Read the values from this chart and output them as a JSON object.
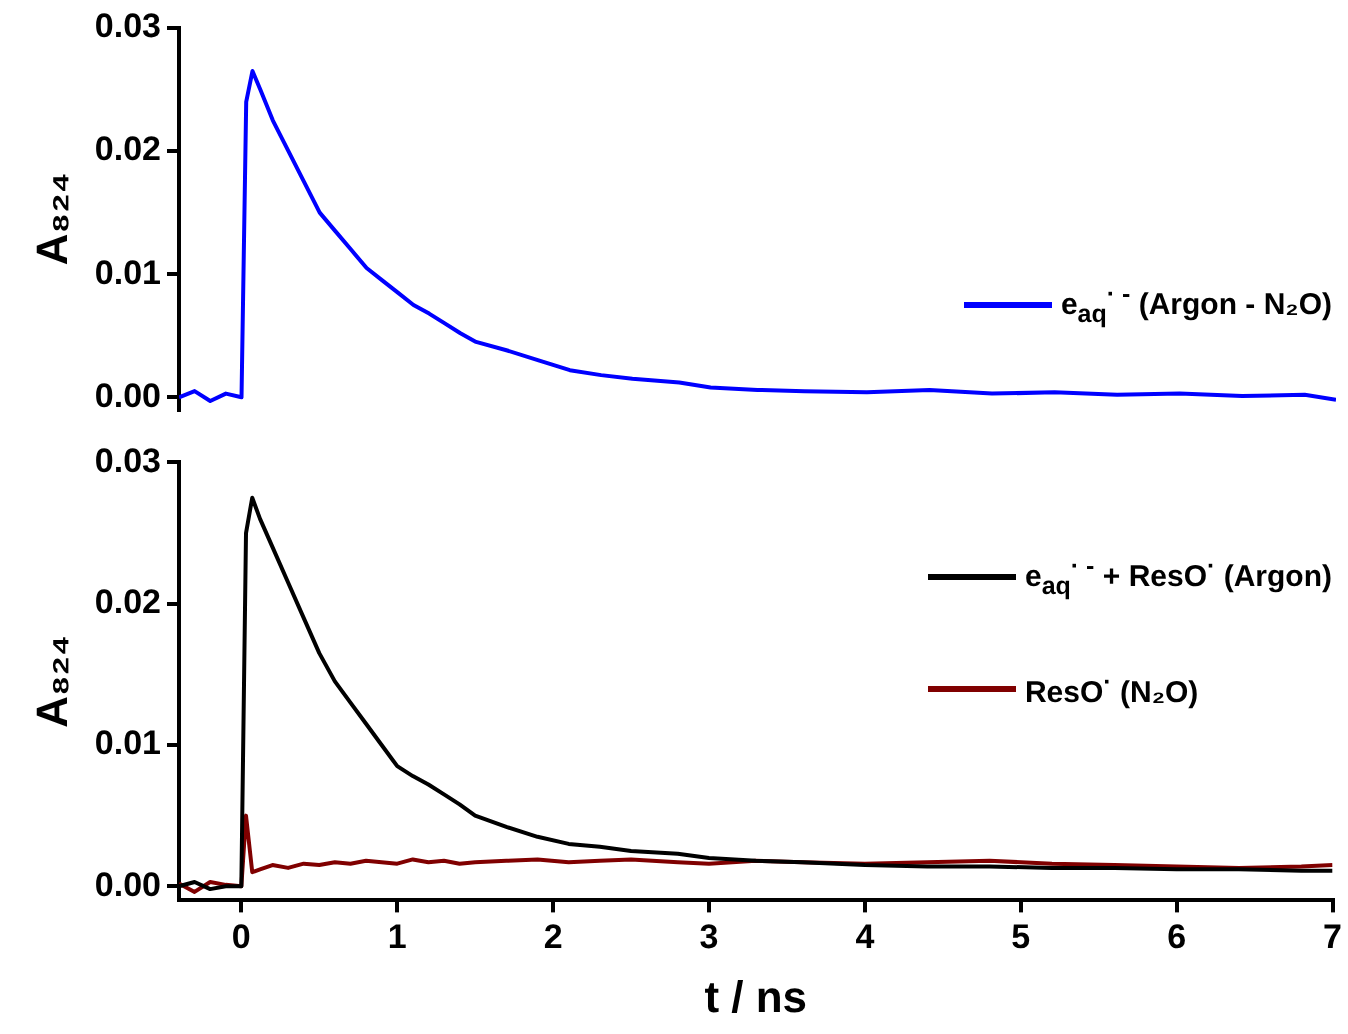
{
  "chart_data": [
    {
      "type": "line",
      "ylabel": "A₈₂₄",
      "xlim": [
        -0.4,
        7
      ],
      "ylim": [
        -0.001,
        0.03
      ],
      "tick_labels": "y",
      "legend": "right",
      "yticks": [
        {
          "value": 0,
          "label": "0.00"
        },
        {
          "value": 0.01,
          "label": "0.01"
        },
        {
          "value": 0.02,
          "label": "0.02"
        },
        {
          "value": 0.03,
          "label": "0.03"
        }
      ],
      "x": [
        -0.4,
        -0.3,
        -0.2,
        -0.1,
        0,
        0.03,
        0.07,
        0.12,
        0.2,
        0.3,
        0.4,
        0.5,
        0.6,
        0.7,
        0.8,
        0.9,
        1.0,
        1.1,
        1.2,
        1.3,
        1.4,
        1.5,
        1.7,
        1.9,
        2.1,
        2.3,
        2.5,
        2.8,
        3.0,
        3.3,
        3.6,
        4.0,
        4.4,
        4.8,
        5.2,
        5.6,
        6.0,
        6.4,
        6.8,
        7.0
      ],
      "series": [
        {
          "name": "e$_{aq}$$^{· -}$  (Argon - N₂O)",
          "color": "#0000ff",
          "values": [
            0,
            0.0005,
            -0.0003,
            0.0003,
            0,
            0.024,
            0.0265,
            0.025,
            0.0225,
            0.02,
            0.0175,
            0.015,
            0.0135,
            0.012,
            0.0105,
            0.0095,
            0.0085,
            0.0075,
            0.0068,
            0.006,
            0.0052,
            0.0045,
            0.0038,
            0.003,
            0.0022,
            0.0018,
            0.0015,
            0.0012,
            0.0008,
            0.0006,
            0.0005,
            0.0004,
            0.0006,
            0.0003,
            0.0004,
            0.0002,
            0.0003,
            0.0001,
            0.0002,
            -0.0002
          ]
        }
      ]
    },
    {
      "type": "line",
      "ylabel": "A₈₂₄",
      "xlabel": "t / ns",
      "xlim": [
        -0.4,
        7
      ],
      "ylim": [
        -0.001,
        0.03
      ],
      "legend": "right",
      "xticks": [
        0,
        1,
        2,
        3,
        4,
        5,
        6,
        7
      ],
      "yticks": [
        {
          "value": 0,
          "label": "0.00"
        },
        {
          "value": 0.01,
          "label": "0.01"
        },
        {
          "value": 0.02,
          "label": "0.02"
        },
        {
          "value": 0.03,
          "label": "0.03"
        }
      ],
      "x": [
        -0.4,
        -0.3,
        -0.2,
        -0.1,
        0,
        0.03,
        0.07,
        0.12,
        0.2,
        0.3,
        0.4,
        0.5,
        0.6,
        0.7,
        0.8,
        0.9,
        1.0,
        1.1,
        1.2,
        1.3,
        1.4,
        1.5,
        1.7,
        1.9,
        2.1,
        2.3,
        2.5,
        2.8,
        3.0,
        3.3,
        3.6,
        4.0,
        4.4,
        4.8,
        5.2,
        5.6,
        6.0,
        6.4,
        6.8,
        7.0
      ],
      "series": [
        {
          "name": "e$_{aq}$$^{· -}$ + ResO$^{·}$  (Argon)",
          "color": "#000000",
          "values": [
            0,
            0.0003,
            -0.0002,
            0,
            0,
            0.025,
            0.0275,
            0.026,
            0.024,
            0.0215,
            0.019,
            0.0165,
            0.0145,
            0.013,
            0.0115,
            0.01,
            0.0085,
            0.0078,
            0.0072,
            0.0065,
            0.0058,
            0.005,
            0.0042,
            0.0035,
            0.003,
            0.0028,
            0.0025,
            0.0023,
            0.002,
            0.0018,
            0.0017,
            0.0015,
            0.0014,
            0.0014,
            0.0013,
            0.0013,
            0.0012,
            0.0012,
            0.0011,
            0.0011
          ]
        },
        {
          "name": "ResO$^{·}$  (N₂O)",
          "color": "#800000",
          "values": [
            0.0002,
            -0.0004,
            0.0003,
            0.0001,
            0,
            0.005,
            0.001,
            0.0012,
            0.0015,
            0.0013,
            0.0016,
            0.0015,
            0.0017,
            0.0016,
            0.0018,
            0.0017,
            0.0016,
            0.0019,
            0.0017,
            0.0018,
            0.0016,
            0.0017,
            0.0018,
            0.0019,
            0.0017,
            0.0018,
            0.0019,
            0.0017,
            0.0016,
            0.0018,
            0.0017,
            0.0016,
            0.0017,
            0.0018,
            0.0016,
            0.0015,
            0.0014,
            0.0013,
            0.0014,
            0.0015
          ]
        }
      ]
    }
  ]
}
